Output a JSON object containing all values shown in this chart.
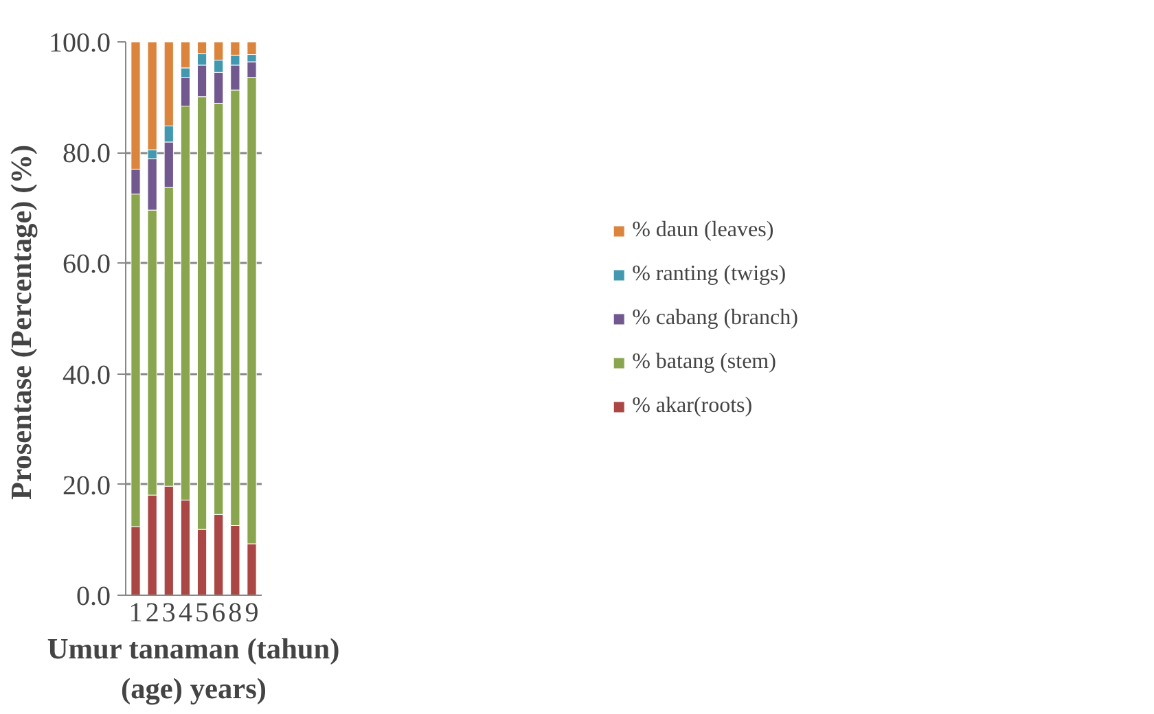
{
  "chart_data": {
    "type": "bar",
    "stacked": true,
    "categories": [
      "1",
      "2",
      "3",
      "4",
      "5",
      "6",
      "8",
      "9"
    ],
    "series": [
      {
        "name": "% akar(roots)",
        "color": "#aa4644",
        "values": [
          12.4,
          18.1,
          19.7,
          17.2,
          11.9,
          14.6,
          12.6,
          9.3
        ]
      },
      {
        "name": "% batang (stem)",
        "color": "#89a54e",
        "values": [
          60.1,
          51.5,
          54.0,
          71.2,
          78.2,
          74.3,
          78.7,
          84.3
        ]
      },
      {
        "name": "% cabang (branch)",
        "color": "#71588f",
        "values": [
          4.5,
          9.3,
          8.2,
          5.2,
          5.7,
          5.6,
          4.5,
          2.8
        ]
      },
      {
        "name": "% ranting (twigs)",
        "color": "#4198af",
        "values": [
          0.0,
          1.6,
          2.9,
          1.7,
          2.1,
          2.2,
          1.8,
          1.3
        ]
      },
      {
        "name": "% daun (leaves)",
        "color": "#db843d",
        "values": [
          23.0,
          19.5,
          15.2,
          4.7,
          2.1,
          3.3,
          2.4,
          2.3
        ]
      }
    ],
    "ylim": [
      0,
      100
    ],
    "yticks": [
      {
        "value": 0,
        "label": "0.0"
      },
      {
        "value": 20,
        "label": "20.0"
      },
      {
        "value": 40,
        "label": "40.0"
      },
      {
        "value": 60,
        "label": "60.0"
      },
      {
        "value": 80,
        "label": "80.0"
      },
      {
        "value": 100,
        "label": "100.0"
      }
    ],
    "ylabel": "Prosentase  (Percentage) (%)",
    "xlabel": "Umur tanaman (tahun)\n(age) years)",
    "grid": "y",
    "legend": "right"
  }
}
